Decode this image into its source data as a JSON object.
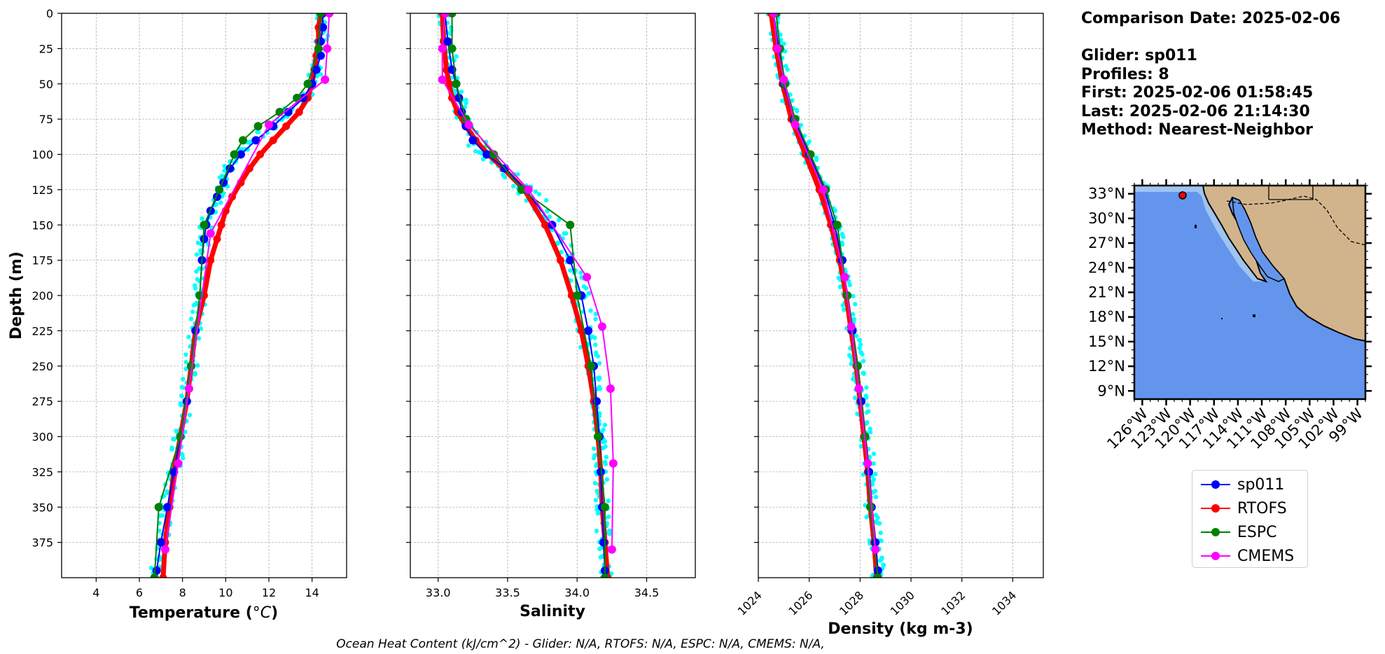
{
  "info": {
    "comparison_date": "Comparison Date: 2025-02-06",
    "glider": "Glider: sp011",
    "profiles": "Profiles: 8",
    "first": "First: 2025-02-06 01:58:45",
    "last": "Last: 2025-02-06 21:14:30",
    "method": "Method: Nearest-Neighbor"
  },
  "footer": "Ocean Heat Content (kJ/cm^2) - Glider: N/A,  RTOFS: N/A,  ESPC: N/A,  CMEMS: N/A,",
  "colors": {
    "sp011": "#0000ff",
    "RTOFS": "#ff0000",
    "ESPC": "#008000",
    "CMEMS": "#ff00ff",
    "glider_raw": "#00ffff",
    "ocean": "#6495ed",
    "shelf": "#a0c4f0",
    "land": "#d2b48c"
  },
  "legend": [
    {
      "name": "sp011",
      "color": "#0000ff"
    },
    {
      "name": "RTOFS",
      "color": "#ff0000"
    },
    {
      "name": "ESPC",
      "color": "#008000"
    },
    {
      "name": "CMEMS",
      "color": "#ff00ff"
    }
  ],
  "chart_data": [
    {
      "type": "line",
      "xlabel": "Temperature (°C)",
      "ylabel": "Depth (m)",
      "xlim": [
        2.4,
        15.6
      ],
      "ylim": [
        400,
        0
      ],
      "y_inverted": true,
      "xticks": [
        "4",
        "6",
        "8",
        "10",
        "12",
        "14"
      ],
      "yticks": [
        "0",
        "25",
        "50",
        "75",
        "100",
        "125",
        "150",
        "175",
        "200",
        "225",
        "250",
        "275",
        "300",
        "325",
        "350",
        "375"
      ],
      "grid": true,
      "series": [
        {
          "name": "sp011",
          "depth": [
            0,
            10,
            20,
            30,
            40,
            50,
            60,
            70,
            80,
            90,
            100,
            110,
            120,
            130,
            140,
            150,
            160,
            175,
            200,
            225,
            250,
            275,
            300,
            325,
            350,
            375,
            395
          ],
          "values": [
            14.5,
            14.5,
            14.4,
            14.4,
            14.2,
            14.0,
            13.6,
            12.9,
            12.2,
            11.4,
            10.7,
            10.2,
            9.9,
            9.6,
            9.3,
            9.1,
            9.0,
            8.9,
            8.8,
            8.6,
            8.4,
            8.2,
            7.9,
            7.6,
            7.3,
            7.0,
            6.8
          ]
        },
        {
          "name": "RTOFS",
          "depth": [
            0,
            10,
            20,
            30,
            40,
            50,
            60,
            70,
            80,
            90,
            100,
            110,
            120,
            130,
            140,
            150,
            160,
            175,
            200,
            225,
            250,
            275,
            300,
            325,
            350,
            375,
            400
          ],
          "values": [
            14.4,
            14.3,
            14.3,
            14.2,
            14.1,
            14.0,
            13.8,
            13.4,
            12.8,
            12.2,
            11.6,
            11.1,
            10.7,
            10.3,
            10.0,
            9.8,
            9.6,
            9.3,
            9.0,
            8.6,
            8.4,
            8.2,
            7.9,
            7.6,
            7.4,
            7.2,
            7.1
          ]
        },
        {
          "name": "ESPC",
          "depth": [
            0,
            25,
            50,
            60,
            70,
            80,
            90,
            100,
            125,
            150,
            200,
            250,
            300,
            350,
            400
          ],
          "values": [
            14.4,
            14.3,
            13.8,
            13.3,
            12.5,
            11.5,
            10.8,
            10.4,
            9.7,
            9.0,
            8.8,
            8.4,
            7.9,
            6.9,
            6.7
          ]
        },
        {
          "name": "CMEMS",
          "depth": [
            0,
            25,
            47,
            79,
            156,
            266,
            319,
            380
          ],
          "values": [
            14.8,
            14.7,
            14.6,
            12.0,
            9.3,
            8.3,
            7.8,
            7.2
          ]
        }
      ]
    },
    {
      "type": "line",
      "xlabel": "Salinity",
      "xlim": [
        32.8,
        34.85
      ],
      "ylim": [
        400,
        0
      ],
      "y_inverted": true,
      "xticks": [
        "33.0",
        "33.5",
        "34.0",
        "34.5"
      ],
      "grid": true,
      "series": [
        {
          "name": "sp011",
          "depth": [
            0,
            20,
            40,
            50,
            60,
            70,
            80,
            90,
            100,
            110,
            125,
            150,
            175,
            200,
            225,
            250,
            275,
            300,
            325,
            350,
            375,
            395
          ],
          "values": [
            33.05,
            33.07,
            33.1,
            33.13,
            33.15,
            33.17,
            33.2,
            33.25,
            33.35,
            33.48,
            33.63,
            33.82,
            33.95,
            34.03,
            34.08,
            34.12,
            34.14,
            34.16,
            34.17,
            34.18,
            34.19,
            34.2
          ]
        },
        {
          "name": "RTOFS",
          "depth": [
            0,
            20,
            40,
            50,
            60,
            70,
            80,
            90,
            100,
            110,
            125,
            150,
            175,
            200,
            225,
            250,
            275,
            300,
            325,
            350,
            375,
            400
          ],
          "values": [
            33.03,
            33.04,
            33.06,
            33.08,
            33.1,
            33.14,
            33.2,
            33.27,
            33.36,
            33.47,
            33.62,
            33.77,
            33.88,
            33.96,
            34.03,
            34.08,
            34.12,
            34.15,
            34.17,
            34.18,
            34.2,
            34.22
          ]
        },
        {
          "name": "ESPC",
          "depth": [
            0,
            25,
            50,
            75,
            100,
            125,
            150,
            200,
            250,
            300,
            350,
            400
          ],
          "values": [
            33.1,
            33.1,
            33.13,
            33.2,
            33.4,
            33.6,
            33.95,
            34.0,
            34.1,
            34.15,
            34.2,
            34.2
          ]
        },
        {
          "name": "CMEMS",
          "depth": [
            0,
            25,
            47,
            79,
            125,
            187,
            222,
            266,
            319,
            380
          ],
          "values": [
            33.05,
            33.03,
            33.03,
            33.22,
            33.65,
            34.07,
            34.18,
            34.24,
            34.26,
            34.25
          ]
        }
      ]
    },
    {
      "type": "line",
      "xlabel": "Density (kg m-3)",
      "xlim": [
        1024,
        1035.2
      ],
      "ylim": [
        400,
        0
      ],
      "y_inverted": true,
      "xticks": [
        "1024",
        "1026",
        "1028",
        "1030",
        "1032",
        "1034"
      ],
      "grid": true,
      "series": [
        {
          "name": "sp011",
          "depth": [
            0,
            25,
            50,
            75,
            100,
            125,
            150,
            175,
            200,
            225,
            250,
            275,
            300,
            325,
            350,
            375,
            395
          ],
          "values": [
            1024.6,
            1024.8,
            1025.0,
            1025.4,
            1026.0,
            1026.6,
            1027.0,
            1027.3,
            1027.5,
            1027.7,
            1027.9,
            1028.05,
            1028.2,
            1028.35,
            1028.45,
            1028.6,
            1028.7
          ]
        },
        {
          "name": "RTOFS",
          "depth": [
            0,
            25,
            50,
            75,
            100,
            125,
            150,
            175,
            200,
            225,
            250,
            275,
            300,
            325,
            350,
            375,
            400
          ],
          "values": [
            1024.5,
            1024.7,
            1024.95,
            1025.3,
            1025.85,
            1026.4,
            1026.85,
            1027.2,
            1027.45,
            1027.65,
            1027.85,
            1028.0,
            1028.15,
            1028.3,
            1028.4,
            1028.55,
            1028.65
          ]
        },
        {
          "name": "ESPC",
          "depth": [
            0,
            25,
            50,
            75,
            100,
            125,
            150,
            200,
            250,
            300,
            350,
            400
          ],
          "values": [
            1024.7,
            1024.85,
            1025.05,
            1025.45,
            1026.05,
            1026.65,
            1027.1,
            1027.5,
            1027.9,
            1028.2,
            1028.4,
            1028.7
          ]
        },
        {
          "name": "CMEMS",
          "depth": [
            0,
            25,
            47,
            79,
            125,
            187,
            222,
            266,
            319,
            380
          ],
          "values": [
            1024.6,
            1024.75,
            1025.0,
            1025.45,
            1026.55,
            1027.4,
            1027.65,
            1027.95,
            1028.3,
            1028.6
          ]
        }
      ]
    }
  ],
  "map": {
    "lat_labels": [
      "33°N",
      "30°N",
      "27°N",
      "24°N",
      "21°N",
      "18°N",
      "15°N",
      "12°N",
      "9°N"
    ],
    "lon_labels": [
      "126°W",
      "123°W",
      "120°W",
      "117°W",
      "114°W",
      "111°W",
      "108°W",
      "105°W",
      "102°W",
      "99°W"
    ],
    "glider_position": {
      "lat": 32.5,
      "lon": -122.0
    }
  }
}
